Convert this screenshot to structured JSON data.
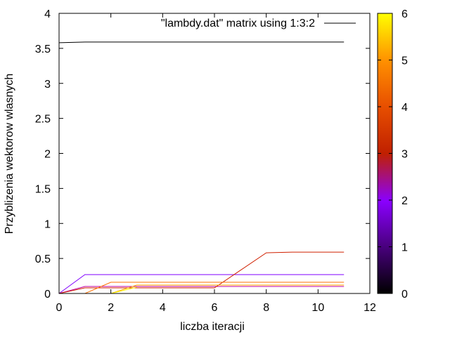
{
  "chart_data": {
    "type": "line",
    "title": "",
    "xlabel": "liczba iteracji",
    "ylabel": "Przyblizenia wektorow wlasnych",
    "xlim": [
      0,
      12
    ],
    "ylim": [
      0,
      4
    ],
    "x_ticks": [
      "0",
      "2",
      "4",
      "6",
      "8",
      "10",
      "12"
    ],
    "y_ticks": [
      "0",
      "0.5",
      "1",
      "1.5",
      "2",
      "2.5",
      "3",
      "3.5",
      "4"
    ],
    "grid": false,
    "legend": {
      "position": "top-right",
      "label": "\"lambdy.dat\" matrix using 1:3:2",
      "color": "#000000"
    },
    "colorbar": {
      "range": [
        0,
        6
      ],
      "ticks": [
        "0",
        "1",
        "2",
        "3",
        "4",
        "5",
        "6"
      ],
      "palette": [
        "#000000",
        "#7000a0",
        "#c000c0",
        "#e03000",
        "#ff8000",
        "#ffc000",
        "#ffff00"
      ]
    },
    "series": [
      {
        "color_value": 0,
        "color": "#000000",
        "x": [
          0,
          1,
          2,
          3,
          4,
          5,
          6,
          7,
          8,
          9,
          10,
          11
        ],
        "y": [
          3.58,
          3.59,
          3.59,
          3.59,
          3.59,
          3.59,
          3.59,
          3.59,
          3.59,
          3.59,
          3.59,
          3.59
        ]
      },
      {
        "color_value": 1,
        "color": "#8000ff",
        "x": [
          0,
          1,
          2,
          3,
          4,
          5,
          6,
          7,
          8,
          9,
          10,
          11
        ],
        "y": [
          0,
          0.27,
          0.27,
          0.27,
          0.27,
          0.27,
          0.27,
          0.27,
          0.27,
          0.27,
          0.27,
          0.27
        ]
      },
      {
        "color_value": 2,
        "color": "#c000a0",
        "x": [
          0,
          1,
          2,
          3,
          4,
          5,
          6,
          7,
          8,
          9,
          10,
          11
        ],
        "y": [
          0,
          0.1,
          0.1,
          0.1,
          0.1,
          0.1,
          0.1,
          0.1,
          0.1,
          0.1,
          0.1,
          0.1
        ]
      },
      {
        "color_value": 3,
        "color": "#d02000",
        "x": [
          0,
          1,
          2,
          3,
          4,
          5,
          6,
          7,
          8,
          9,
          10,
          11
        ],
        "y": [
          0,
          0.08,
          0.08,
          0.08,
          0.08,
          0.08,
          0.08,
          0.33,
          0.58,
          0.59,
          0.59,
          0.59
        ]
      },
      {
        "color_value": 4,
        "color": "#ff7000",
        "x": [
          1,
          2,
          3,
          4,
          5,
          6,
          7,
          8,
          9,
          10,
          11
        ],
        "y": [
          0,
          0.16,
          0.16,
          0.16,
          0.16,
          0.16,
          0.16,
          0.16,
          0.16,
          0.16,
          0.16
        ]
      },
      {
        "color_value": 5,
        "color": "#ffa500",
        "x": [
          2,
          3,
          4,
          5,
          6,
          7,
          8,
          9,
          10,
          11
        ],
        "y": [
          0,
          0.12,
          0.12,
          0.12,
          0.12,
          0.12,
          0.12,
          0.12,
          0.12,
          0.12
        ]
      },
      {
        "color_value": 6,
        "color": "#ffff00",
        "x": [
          2,
          3
        ],
        "y": [
          0,
          0.09
        ]
      }
    ]
  }
}
